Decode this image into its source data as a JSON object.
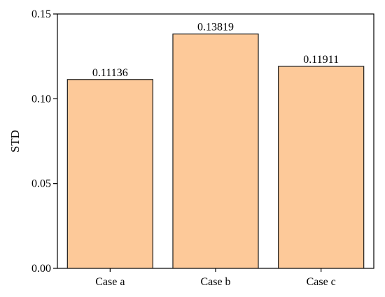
{
  "chart_data": {
    "type": "bar",
    "categories": [
      "Case a",
      "Case b",
      "Case c"
    ],
    "values": [
      0.11136,
      0.13819,
      0.11911
    ],
    "data_labels": [
      "0.11136",
      "0.13819",
      "0.11911"
    ],
    "title": "",
    "xlabel": "",
    "ylabel": "STD",
    "ylim": [
      0,
      0.15
    ],
    "yticks": [
      0,
      0.05,
      0.1,
      0.15
    ],
    "ytick_labels": [
      "0.00",
      "0.05",
      "0.10",
      "0.15"
    ],
    "grid": false,
    "legend": "none",
    "colors": {
      "bar_fill": "#FDC999",
      "bar_stroke": "#1a1a1a",
      "axis": "#000000"
    }
  }
}
